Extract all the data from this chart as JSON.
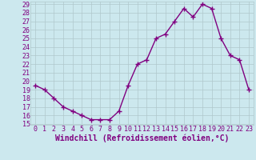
{
  "x": [
    0,
    1,
    2,
    3,
    4,
    5,
    6,
    7,
    8,
    9,
    10,
    11,
    12,
    13,
    14,
    15,
    16,
    17,
    18,
    19,
    20,
    21,
    22,
    23
  ],
  "y": [
    19.5,
    19.0,
    18.0,
    17.0,
    16.5,
    16.0,
    15.5,
    15.5,
    15.5,
    16.5,
    19.5,
    22.0,
    22.5,
    25.0,
    25.5,
    27.0,
    28.5,
    27.5,
    29.0,
    28.5,
    25.0,
    23.0,
    22.5,
    19.0
  ],
  "line_color": "#800080",
  "marker": "+",
  "marker_size": 4,
  "marker_lw": 1.0,
  "line_width": 1.0,
  "bg_color": "#cce8ee",
  "grid_color": "#b0c8cc",
  "xlabel": "Windchill (Refroidissement éolien,°C)",
  "xlabel_fontsize": 7,
  "tick_fontsize": 6,
  "ylim": [
    15,
    29
  ],
  "xlim": [
    -0.5,
    23.5
  ],
  "yticks": [
    15,
    16,
    17,
    18,
    19,
    20,
    21,
    22,
    23,
    24,
    25,
    26,
    27,
    28,
    29
  ],
  "xticks": [
    0,
    1,
    2,
    3,
    4,
    5,
    6,
    7,
    8,
    9,
    10,
    11,
    12,
    13,
    14,
    15,
    16,
    17,
    18,
    19,
    20,
    21,
    22,
    23
  ]
}
